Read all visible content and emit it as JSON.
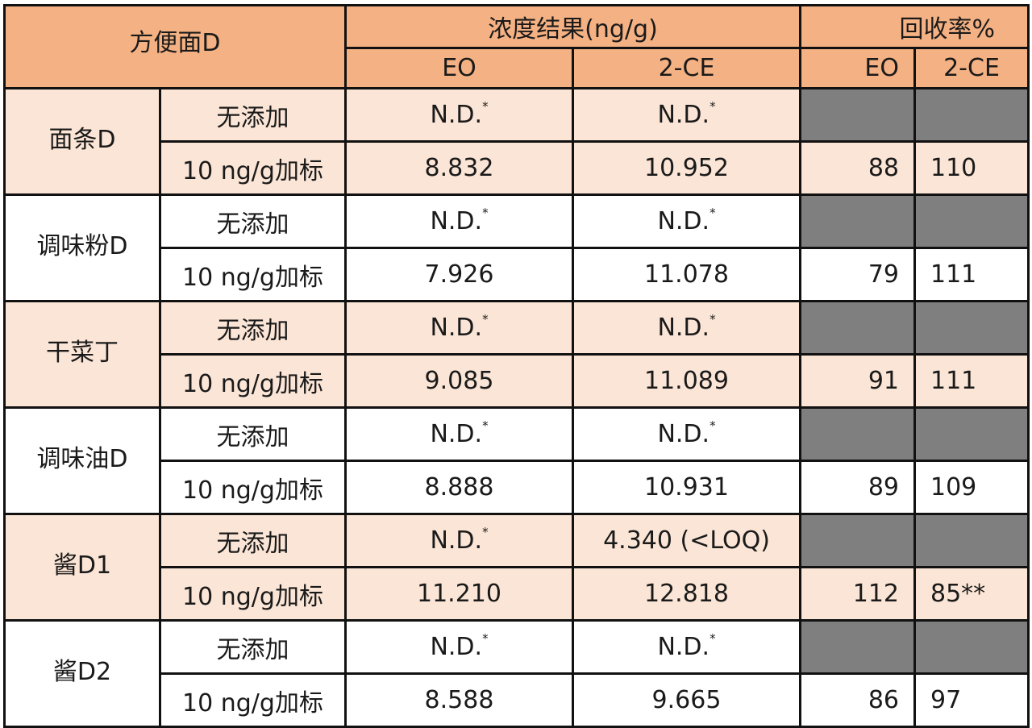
{
  "header": {
    "product": "方便面D",
    "conc_group": "浓度结果(ng/g)",
    "recovery_group": "回收率%",
    "conc_eo": "EO",
    "conc_2ce": "2-CE",
    "rec_eo": "EO",
    "rec_2ce": "2-CE"
  },
  "groups": [
    {
      "name": "面条D",
      "rows": [
        {
          "cond": "无添加",
          "eo": "N.D.",
          "eo_mark": "*",
          "ce": "N.D.",
          "ce_mark": "*",
          "rec_eo": "",
          "rec_ce": ""
        },
        {
          "cond": "10 ng/g加标",
          "eo": "8.832",
          "eo_mark": "",
          "ce": "10.952",
          "ce_mark": "",
          "rec_eo": "88",
          "rec_ce": "110"
        }
      ]
    },
    {
      "name": "调味粉D",
      "rows": [
        {
          "cond": "无添加",
          "eo": "N.D.",
          "eo_mark": "*",
          "ce": "N.D.",
          "ce_mark": "*",
          "rec_eo": "",
          "rec_ce": ""
        },
        {
          "cond": "10 ng/g加标",
          "eo": "7.926",
          "eo_mark": "",
          "ce": "11.078",
          "ce_mark": "",
          "rec_eo": "79",
          "rec_ce": "111"
        }
      ]
    },
    {
      "name": "干菜丁",
      "rows": [
        {
          "cond": "无添加",
          "eo": "N.D.",
          "eo_mark": "*",
          "ce": "N.D.",
          "ce_mark": "*",
          "rec_eo": "",
          "rec_ce": ""
        },
        {
          "cond": "10 ng/g加标",
          "eo": "9.085",
          "eo_mark": "",
          "ce": "11.089",
          "ce_mark": "",
          "rec_eo": "91",
          "rec_ce": "111"
        }
      ]
    },
    {
      "name": "调味油D",
      "rows": [
        {
          "cond": "无添加",
          "eo": "N.D.",
          "eo_mark": "*",
          "ce": "N.D.",
          "ce_mark": "*",
          "rec_eo": "",
          "rec_ce": ""
        },
        {
          "cond": "10 ng/g加标",
          "eo": "8.888",
          "eo_mark": "",
          "ce": "10.931",
          "ce_mark": "",
          "rec_eo": "89",
          "rec_ce": "109"
        }
      ]
    },
    {
      "name": "酱D1",
      "rows": [
        {
          "cond": "无添加",
          "eo": "N.D.",
          "eo_mark": "*",
          "ce": "4.340 (<LOQ)",
          "ce_mark": "",
          "rec_eo": "",
          "rec_ce": ""
        },
        {
          "cond": "10 ng/g加标",
          "eo": "11.210",
          "eo_mark": "",
          "ce": "12.818",
          "ce_mark": "",
          "rec_eo": "112",
          "rec_ce": "85**"
        }
      ]
    },
    {
      "name": "酱D2",
      "rows": [
        {
          "cond": "无添加",
          "eo": "N.D.",
          "eo_mark": "*",
          "ce": "N.D.",
          "ce_mark": "*",
          "rec_eo": "",
          "rec_ce": ""
        },
        {
          "cond": "10 ng/g加标",
          "eo": "8.588",
          "eo_mark": "",
          "ce": "9.665",
          "ce_mark": "",
          "rec_eo": "86",
          "rec_ce": "97"
        }
      ]
    }
  ],
  "colors": {
    "header_bg": "#f4b183",
    "row_highlight_bg": "#fbe5d6",
    "row_plain_bg": "#ffffff",
    "empty_cell_bg": "#7f7f7f"
  }
}
